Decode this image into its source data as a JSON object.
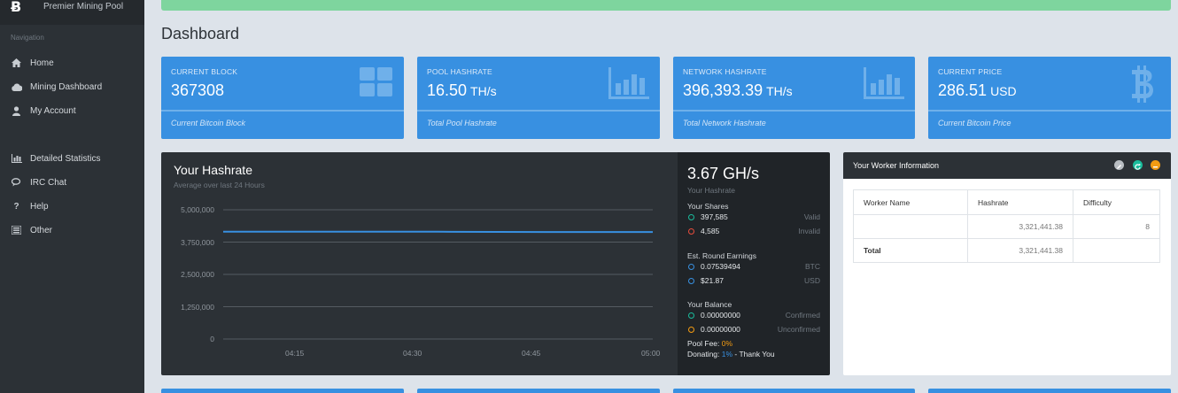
{
  "brand": {
    "logo": "Ƀ",
    "name": "Premier Mining Pool"
  },
  "sidebar": {
    "section_label": "Navigation",
    "items": [
      {
        "label": "Home",
        "icon": "home-icon"
      },
      {
        "label": "Mining Dashboard",
        "icon": "cloud-icon"
      },
      {
        "label": "My Account",
        "icon": "user-icon"
      },
      {
        "label": "Detailed Statistics",
        "icon": "bar-chart-icon"
      },
      {
        "label": "IRC Chat",
        "icon": "chat-icon"
      },
      {
        "label": "Help",
        "icon": "question-icon"
      },
      {
        "label": "Other",
        "icon": "list-icon"
      }
    ]
  },
  "page": {
    "title": "Dashboard"
  },
  "tiles": [
    {
      "label": "Current Block",
      "value": "367308",
      "unit": "",
      "footer": "Current Bitcoin Block",
      "icon": "blocks-icon"
    },
    {
      "label": "Pool Hashrate",
      "value": "16.50",
      "unit": "TH/s",
      "footer": "Total Pool Hashrate",
      "icon": "bar-chart-icon"
    },
    {
      "label": "Network Hashrate",
      "value": "396,393.39",
      "unit": "TH/s",
      "footer": "Total Network Hashrate",
      "icon": "bar-chart-icon"
    },
    {
      "label": "Current Price",
      "value": "286.51",
      "unit": "USD",
      "footer": "Current Bitcoin Price",
      "icon": "bitcoin-icon"
    }
  ],
  "hashrate": {
    "title": "Your Hashrate",
    "subtitle": "Average over last 24 Hours",
    "current": "3.67 GH/s",
    "current_label": "Your Hashrate"
  },
  "chart_data": {
    "type": "line",
    "x": [
      "04:10",
      "04:15",
      "04:30",
      "04:45",
      "05:00"
    ],
    "xticks": [
      "04:15",
      "04:30",
      "04:45",
      "05:00"
    ],
    "yticks": [
      "5,000,000",
      "3,750,000",
      "2,500,000",
      "1,250,000",
      "0"
    ],
    "ylim": [
      0,
      5000000
    ],
    "series": [
      {
        "values": [
          4150000,
          4150000,
          4150000,
          4140000,
          4140000
        ],
        "color": "#3890e1"
      }
    ],
    "grid": true
  },
  "stats": {
    "shares_title": "Your Shares",
    "shares": [
      {
        "value": "397,585",
        "label": "Valid",
        "color": "#1abc9c"
      },
      {
        "value": "4,585",
        "label": "Invalid",
        "color": "#e74c3c"
      }
    ],
    "earnings_title": "Est. Round Earnings",
    "earnings": [
      {
        "value": "0.07539494",
        "label": "BTC",
        "color": "#3890e1"
      },
      {
        "value": "$21.87",
        "label": "USD",
        "color": "#3890e1"
      }
    ],
    "balance_title": "Your Balance",
    "balance": [
      {
        "value": "0.00000000",
        "label": "Confirmed",
        "color": "#1abc9c"
      },
      {
        "value": "0.00000000",
        "label": "Unconfirmed",
        "color": "#f39c12"
      }
    ],
    "pool_fee_label": "Pool Fee: ",
    "pool_fee_value": "0%",
    "donating_label": "Donating: ",
    "donating_value": "1%",
    "donating_suffix": " - Thank You"
  },
  "worker": {
    "title": "Your Worker Information",
    "columns": [
      "Worker Name",
      "Hashrate",
      "Difficulty"
    ],
    "rows": [
      {
        "name": "",
        "hashrate": "3,321,441.38",
        "difficulty": "8"
      }
    ],
    "total": {
      "name": "Total",
      "hashrate": "3,321,441.38",
      "difficulty": ""
    },
    "buttons": [
      {
        "name": "edit",
        "color": "#b8bdc2"
      },
      {
        "name": "refresh",
        "color": "#1abc9c"
      },
      {
        "name": "minimize",
        "color": "#f39c12"
      }
    ]
  }
}
